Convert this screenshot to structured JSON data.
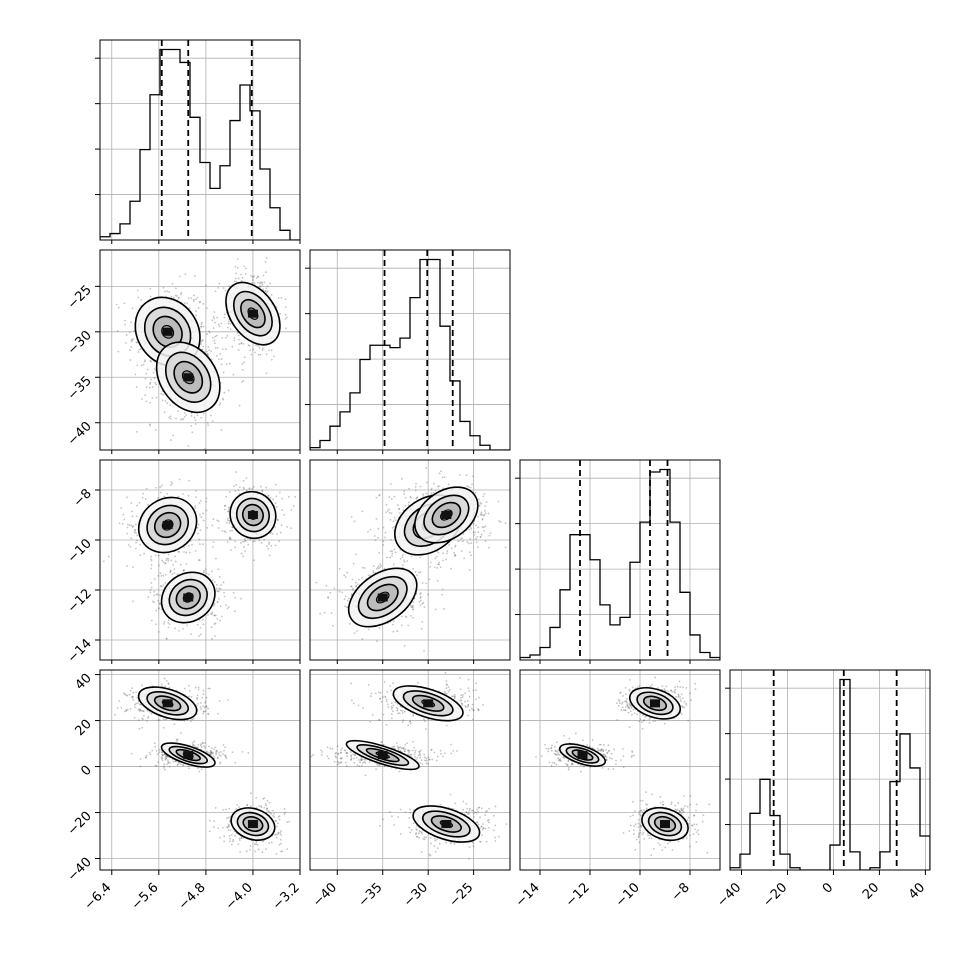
{
  "chart_data": {
    "type": "corner",
    "parameters": [
      {
        "range": [
          -6.6,
          -3.2
        ],
        "ticks": [
          -6.4,
          -5.6,
          -4.8,
          -4.0,
          -3.2
        ],
        "tick_labels": [
          "−6.4",
          "−5.6",
          "−4.8",
          "−4.0",
          "−3.2"
        ],
        "quantiles": [
          -5.55,
          -5.1,
          -4.02
        ],
        "hist_edges": [
          -6.6,
          -3.2
        ],
        "hist_counts": [
          1,
          2,
          5,
          12,
          28,
          45,
          59,
          59,
          55,
          38,
          24,
          16,
          23,
          37,
          48,
          40,
          22,
          10,
          3,
          0
        ]
      },
      {
        "range": [
          -43.0,
          -21.0
        ],
        "ticks": [
          -40,
          -35,
          -30,
          -25
        ],
        "tick_labels": [
          "−40",
          "−35",
          "−30",
          "−25"
        ],
        "quantiles": [
          -34.8,
          -30.1,
          -27.3
        ],
        "hist_edges": [
          -43.0,
          -21.0
        ],
        "hist_counts": [
          1,
          4,
          10,
          16,
          24,
          38,
          44,
          44,
          43,
          47,
          64,
          80,
          80,
          52,
          29,
          12,
          6,
          2,
          0,
          0
        ]
      },
      {
        "range": [
          -14.8,
          -6.8
        ],
        "ticks": [
          -14,
          -12,
          -10,
          -8
        ],
        "tick_labels": [
          "−14",
          "−12",
          "−10",
          "−8"
        ],
        "quantiles": [
          -12.4,
          -9.6,
          -8.9
        ],
        "hist_edges": [
          -14.8,
          -6.8
        ],
        "hist_counts": [
          1,
          2,
          5,
          13,
          28,
          50,
          50,
          40,
          22,
          14,
          17,
          39,
          55,
          75,
          76,
          55,
          27,
          10,
          3,
          1
        ]
      },
      {
        "range": [
          -45,
          42
        ],
        "ticks": [
          -40,
          -20,
          0,
          20,
          40
        ],
        "tick_labels": [
          "−40",
          "−20",
          "0",
          "20",
          "40"
        ],
        "quantiles": [
          -26.0,
          4.5,
          27.5
        ],
        "hist_edges": [
          -45,
          42
        ],
        "hist_counts": [
          1,
          7,
          25,
          40,
          24,
          7,
          1,
          0,
          0,
          0,
          11,
          84,
          8,
          0,
          1,
          8,
          39,
          60,
          45,
          15
        ]
      }
    ],
    "clusters": [
      {
        "mean": [
          -5.45,
          -30.0,
          -9.4,
          27.5
        ],
        "sd": [
          0.27,
          2.1,
          0.55,
          3.2
        ]
      },
      {
        "mean": [
          -5.1,
          -35.0,
          -12.3,
          5.0
        ],
        "sd": [
          0.25,
          2.2,
          0.5,
          2.0
        ]
      },
      {
        "mean": [
          -4.0,
          -28.0,
          -9.0,
          -25.0
        ],
        "sd": [
          0.2,
          2.0,
          0.5,
          3.5
        ]
      }
    ],
    "grid": true
  }
}
